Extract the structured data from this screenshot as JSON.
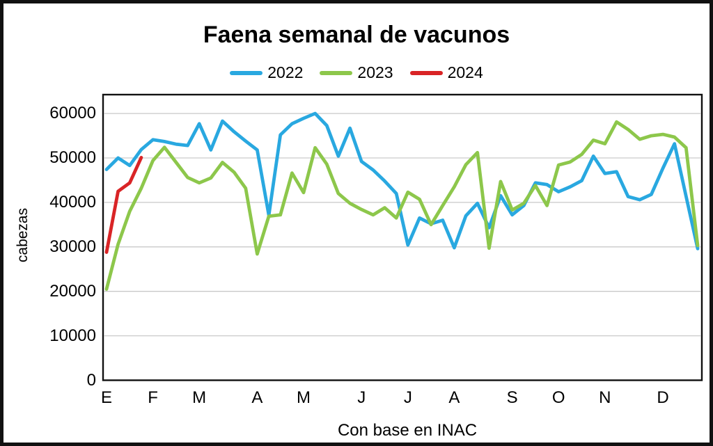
{
  "chart": {
    "title": "Faena semanal de vacunos",
    "ylabel": "cabezas",
    "source": "Con base en INAC"
  },
  "chart_data": {
    "type": "line",
    "title": "Faena semanal de vacunos",
    "ylabel": "cabezas",
    "xlabel": "",
    "source_note": "Con base en INAC",
    "x_unit": "week_of_year",
    "weeks": 52,
    "month_labels": [
      "E",
      "F",
      "M",
      "A",
      "M",
      "J",
      "J",
      "A",
      "S",
      "O",
      "N",
      "D"
    ],
    "month_start_weeks": [
      1,
      5,
      9,
      14,
      18,
      23,
      27,
      31,
      36,
      40,
      44,
      49
    ],
    "ylim": [
      0,
      64200
    ],
    "yticks": [
      0,
      10000,
      20000,
      30000,
      40000,
      50000,
      60000
    ],
    "grid": true,
    "legend_position": "top-center",
    "gridline_color": "#c9c9c9",
    "axis_color": "#111111",
    "series": [
      {
        "name": "2022",
        "color": "#29a8e0",
        "values": [
          47400,
          50000,
          48300,
          51900,
          54100,
          53700,
          53100,
          52800,
          57700,
          51800,
          58300,
          55900,
          53800,
          51800,
          37100,
          55200,
          57700,
          58900,
          60000,
          57300,
          50400,
          56700,
          49200,
          47300,
          44800,
          42000,
          30400,
          36500,
          35200,
          36000,
          29800,
          37000,
          39800,
          34300,
          41500,
          37200,
          39300,
          44400,
          44000,
          42400,
          43500,
          44900,
          50400,
          46500,
          46900,
          41300,
          40600,
          41800,
          47700,
          53200,
          41400,
          29600
        ]
      },
      {
        "name": "2023",
        "color": "#8dc74b",
        "values": [
          20500,
          30600,
          38000,
          43200,
          49400,
          52400,
          49000,
          45600,
          44400,
          45500,
          49000,
          46800,
          43200,
          28400,
          36900,
          37200,
          46600,
          42200,
          52300,
          48600,
          42000,
          39800,
          38400,
          37200,
          38800,
          36500,
          42300,
          40700,
          35000,
          39300,
          43500,
          48500,
          51200,
          29700,
          44700,
          38300,
          39800,
          43800,
          39300,
          48400,
          49100,
          50800,
          54000,
          53200,
          58100,
          56400,
          54200,
          55000,
          55300,
          54700,
          52300,
          30300
        ]
      },
      {
        "name": "2024",
        "color": "#d92426",
        "values": [
          28800,
          42500,
          44400,
          50100
        ]
      }
    ]
  }
}
